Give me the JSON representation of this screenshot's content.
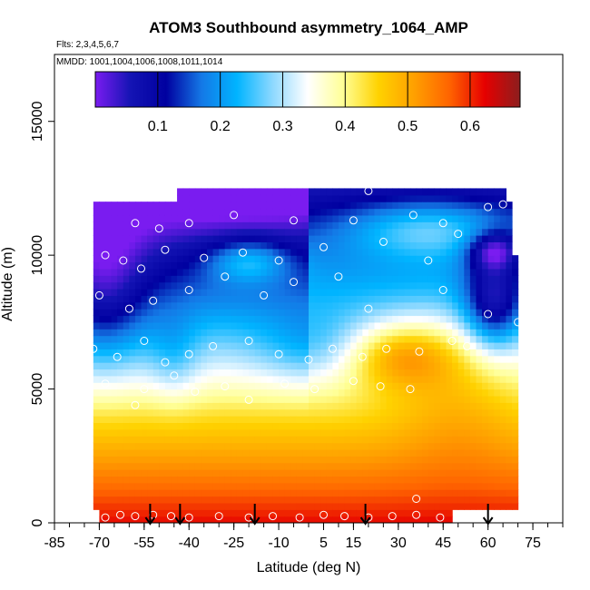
{
  "chart_data": {
    "type": "heatmap",
    "title": "ATOM3 Southbound asymmetry_1064_AMP",
    "subtitle_flights": "Flts: 2,3,4,5,6,7",
    "subtitle_dates": "MMDD: 1001,1004,1006,1008,1011,1014",
    "xlabel": "Latitude (deg N)",
    "ylabel": "Altitude (m)",
    "xlim": [
      -85,
      85
    ],
    "ylim": [
      0,
      17500
    ],
    "x_tick_labels": [
      "-85",
      "-70",
      "-55",
      "-40",
      "-25",
      "-10",
      "5",
      "15",
      "30",
      "45",
      "60",
      "75"
    ],
    "x_tick_values": [
      -85,
      -70,
      -55,
      -40,
      -25,
      -10,
      5,
      15,
      30,
      45,
      60,
      75
    ],
    "y_tick_labels": [
      "0",
      "5000",
      "10000",
      "15000"
    ],
    "y_tick_values": [
      0,
      5000,
      10000,
      15000
    ],
    "colorbar": {
      "range": [
        0.0,
        0.68
      ],
      "tick_labels": [
        "0.1",
        "0.2",
        "0.3",
        "0.4",
        "0.5",
        "0.6"
      ],
      "tick_values": [
        0.1,
        0.2,
        0.3,
        0.4,
        0.5,
        0.6
      ],
      "colors": [
        "#7a1cf0",
        "#1414b4",
        "#0000a0",
        "#1478e6",
        "#00b4ff",
        "#8cd8ff",
        "#ffffff",
        "#ffff96",
        "#ffd200",
        "#ffa000",
        "#ff6400",
        "#e60000",
        "#8c1e1e"
      ]
    },
    "lat_grid": [
      -75,
      -70,
      -65,
      -60,
      -55,
      -50,
      -45,
      -40,
      -35,
      -30,
      -25,
      -20,
      -15,
      -10,
      -5,
      0,
      5,
      10,
      15,
      20,
      25,
      30,
      35,
      40,
      45,
      50,
      55,
      60,
      65,
      70
    ],
    "alt_grid": [
      0,
      500,
      1000,
      1500,
      2000,
      2500,
      3000,
      3500,
      4000,
      4500,
      5000,
      5500,
      6000,
      6500,
      7000,
      7500,
      8000,
      8500,
      9000,
      9500,
      10000,
      10500,
      11000,
      11500,
      12000
    ],
    "sample_points": [
      [
        -68,
        200
      ],
      [
        -63,
        300
      ],
      [
        -58,
        250
      ],
      [
        -52,
        300
      ],
      [
        -46,
        250
      ],
      [
        -40,
        200
      ],
      [
        -30,
        250
      ],
      [
        -20,
        200
      ],
      [
        -12,
        250
      ],
      [
        -3,
        200
      ],
      [
        5,
        300
      ],
      [
        12,
        250
      ],
      [
        20,
        200
      ],
      [
        28,
        250
      ],
      [
        36,
        300
      ],
      [
        44,
        200
      ],
      [
        36,
        900
      ],
      [
        -75,
        4500
      ],
      [
        -68,
        5200
      ],
      [
        -58,
        4400
      ],
      [
        -55,
        5000
      ],
      [
        -45,
        5500
      ],
      [
        -38,
        4900
      ],
      [
        -28,
        5100
      ],
      [
        -20,
        4600
      ],
      [
        -8,
        5200
      ],
      [
        2,
        5000
      ],
      [
        15,
        5300
      ],
      [
        24,
        5100
      ],
      [
        34,
        5000
      ],
      [
        -72,
        6500
      ],
      [
        -64,
        6200
      ],
      [
        -55,
        6800
      ],
      [
        -48,
        6000
      ],
      [
        -40,
        6300
      ],
      [
        -32,
        6600
      ],
      [
        -20,
        6800
      ],
      [
        -10,
        6300
      ],
      [
        0,
        6100
      ],
      [
        8,
        6500
      ],
      [
        18,
        6200
      ],
      [
        26,
        6500
      ],
      [
        37,
        6400
      ],
      [
        48,
        6800
      ],
      [
        53,
        6600
      ],
      [
        -70,
        8500
      ],
      [
        -60,
        8000
      ],
      [
        -52,
        8300
      ],
      [
        -40,
        8700
      ],
      [
        -28,
        9200
      ],
      [
        -15,
        8500
      ],
      [
        -5,
        9000
      ],
      [
        10,
        9200
      ],
      [
        20,
        8000
      ],
      [
        45,
        8700
      ],
      [
        60,
        7800
      ],
      [
        70,
        7500
      ],
      [
        -68,
        10000
      ],
      [
        -62,
        9800
      ],
      [
        -56,
        9500
      ],
      [
        -48,
        10200
      ],
      [
        -35,
        9900
      ],
      [
        -22,
        10100
      ],
      [
        -10,
        9800
      ],
      [
        5,
        10300
      ],
      [
        25,
        10500
      ],
      [
        40,
        9800
      ],
      [
        50,
        10800
      ],
      [
        -58,
        11200
      ],
      [
        -50,
        11000
      ],
      [
        -40,
        11200
      ],
      [
        -25,
        11500
      ],
      [
        -5,
        11300
      ],
      [
        15,
        11300
      ],
      [
        35,
        11500
      ],
      [
        45,
        11200
      ],
      [
        60,
        11800
      ],
      [
        65,
        11900
      ],
      [
        20,
        12400
      ]
    ],
    "flight_arrows_lat": [
      -53,
      -43,
      -18,
      19,
      60
    ]
  }
}
